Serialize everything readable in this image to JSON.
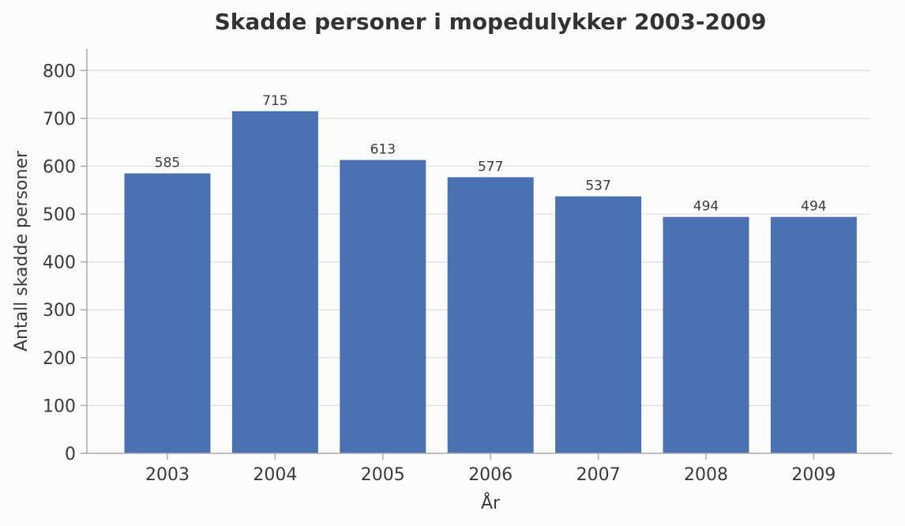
{
  "chart_data": {
    "type": "bar",
    "title": "Skadde personer i mopedulykker 2003-2009",
    "xlabel": "År",
    "ylabel": "Antall skadde personer",
    "categories": [
      "2003",
      "2004",
      "2005",
      "2006",
      "2007",
      "2008",
      "2009"
    ],
    "values": [
      585,
      715,
      613,
      577,
      537,
      494,
      494
    ],
    "data_labels": [
      "585",
      "715",
      "613",
      "577",
      "537",
      "494",
      "494"
    ],
    "ylim": [
      0,
      845
    ],
    "yticks": [
      0,
      100,
      200,
      300,
      400,
      500,
      600,
      700,
      800
    ],
    "grid": true,
    "legend": "none",
    "bar_color": "#4a72b2"
  }
}
